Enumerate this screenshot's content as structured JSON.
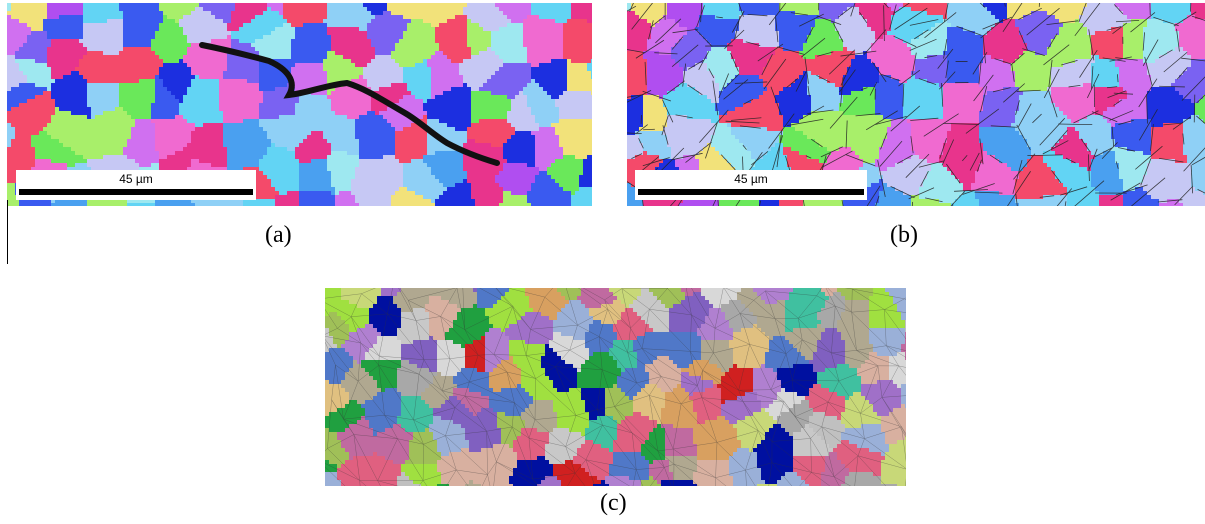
{
  "panels": {
    "a": {
      "caption": "(a)",
      "scale_bar_label": "45 µm",
      "description_kind": "EBSD orientation map with crack"
    },
    "b": {
      "caption": "(b)",
      "scale_bar_label": "45 µm",
      "description_kind": "EBSD orientation map with grain boundaries"
    },
    "c": {
      "caption": "(c)",
      "description_kind": "Meshed polycrystal grain model"
    }
  },
  "palette": {
    "ebsd": [
      "#e8348c",
      "#b04ef0",
      "#7a62f2",
      "#4aa0f0",
      "#62d4f4",
      "#9ee8f0",
      "#6ae85a",
      "#a8ef6a",
      "#3a5af0",
      "#d070f0",
      "#f06ad0",
      "#c6c8f4",
      "#1c2fe0",
      "#f2e27a",
      "#f44a6a",
      "#8fd0f6"
    ],
    "mesh": [
      "#c06aa0",
      "#a8a8a8",
      "#d8b0a0",
      "#c8c8c8",
      "#9ab0d8",
      "#a070c8",
      "#c8d878",
      "#d8a060",
      "#a0c058",
      "#c0c0c0",
      "#e0c080",
      "#e06080",
      "#5078c8",
      "#b0a890",
      "#a0e040",
      "#40c0a0",
      "#8060c0",
      "#0010a0",
      "#d02020",
      "#d8d8d8",
      "#b080d0",
      "#20a040"
    ],
    "crack": "#111111",
    "grain_boundary": "#222222",
    "mesh_edge": "#333333"
  }
}
